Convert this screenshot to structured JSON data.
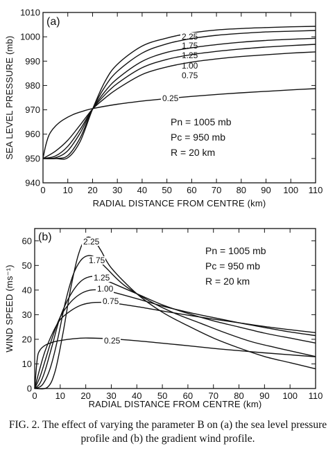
{
  "figure_label": "FIG. 2.",
  "caption": "The effect of varying the parameter B on (a) the sea level pressure profile and (b) the gradient wind profile.",
  "chart_data": [
    {
      "type": "line",
      "panel": "(a)",
      "xlabel": "RADIAL DISTANCE FROM CENTRE (km)",
      "ylabel": "SEA LEVEL PRESSURE (mb)",
      "xlim": [
        0,
        110
      ],
      "ylim": [
        940,
        1010
      ],
      "xticks": [
        0,
        10,
        20,
        30,
        40,
        50,
        60,
        70,
        80,
        90,
        100,
        110
      ],
      "yticks": [
        940,
        950,
        960,
        970,
        980,
        990,
        1000,
        1010
      ],
      "annotations": [
        "Pn = 1005 mb",
        "Pc = 950 mb",
        "R = 20 km"
      ],
      "series": [
        {
          "name": "2.25",
          "x": [
            0,
            5,
            10,
            15,
            20,
            25,
            30,
            40,
            50,
            60,
            70,
            80,
            90,
            100,
            110
          ],
          "y": [
            950,
            950,
            950.3,
            957,
            970.3,
            981.6,
            988.7,
            996.2,
            999.5,
            1001.6,
            1002.8,
            1003.4,
            1003.8,
            1004.1,
            1004.3
          ]
        },
        {
          "name": "1.75",
          "x": [
            0,
            5,
            10,
            15,
            20,
            25,
            30,
            40,
            50,
            60,
            70,
            80,
            90,
            100,
            110
          ],
          "y": [
            950,
            950,
            951.2,
            958.5,
            970.3,
            979.5,
            985.8,
            993.3,
            997.1,
            999.3,
            1000.6,
            1001.4,
            1002,
            1002.3,
            1002.6
          ]
        },
        {
          "name": "1.25",
          "x": [
            0,
            5,
            10,
            15,
            20,
            25,
            30,
            40,
            50,
            60,
            70,
            80,
            90,
            100,
            110
          ],
          "y": [
            950,
            950.3,
            953.2,
            960.5,
            970.3,
            977.5,
            982.8,
            989.9,
            993.6,
            995.5,
            996.8,
            997.8,
            998.5,
            999,
            999.4
          ]
        },
        {
          "name": "1.00",
          "x": [
            0,
            5,
            10,
            15,
            20,
            25,
            30,
            40,
            50,
            60,
            70,
            80,
            90,
            100,
            110
          ],
          "y": [
            950,
            951,
            955,
            962,
            970.3,
            976.2,
            980.8,
            987.3,
            990.7,
            992.7,
            994,
            995,
            995.8,
            996.4,
            996.9
          ]
        },
        {
          "name": "0.75",
          "x": [
            0,
            5,
            10,
            15,
            20,
            25,
            30,
            40,
            50,
            60,
            70,
            80,
            90,
            100,
            110
          ],
          "y": [
            950,
            953,
            957.5,
            963.8,
            970.3,
            974.8,
            978.6,
            984.5,
            987.6,
            989.6,
            990.9,
            991.9,
            992.6,
            993.3,
            993.8
          ]
        },
        {
          "name": "0.25",
          "x": [
            0,
            1,
            2,
            3,
            5,
            8,
            12,
            16,
            20,
            30,
            40,
            50,
            60,
            70,
            80,
            90,
            100,
            110
          ],
          "y": [
            950,
            955,
            958.5,
            960.7,
            963.3,
            965.8,
            968,
            969.4,
            970.5,
            972.3,
            973.6,
            974.6,
            975.5,
            976.3,
            977,
            977.6,
            978.2,
            978.7
          ]
        }
      ]
    },
    {
      "type": "line",
      "panel": "(b)",
      "xlabel": "RADIAL DISTANCE FROM CENTRE (km)",
      "ylabel": "WIND SPEED (ms⁻¹)",
      "xlim": [
        0,
        110
      ],
      "ylim": [
        0,
        65
      ],
      "xticks": [
        0,
        10,
        20,
        30,
        40,
        50,
        60,
        70,
        80,
        90,
        100,
        110
      ],
      "yticks": [
        0,
        10,
        20,
        30,
        40,
        50,
        60
      ],
      "annotations": [
        "Pn = 1005 mb",
        "Pc = 950 mb",
        "R = 20 km"
      ],
      "series": [
        {
          "name": "2.25",
          "x": [
            0,
            5,
            8,
            11,
            14,
            17,
            20,
            23,
            26,
            30,
            40,
            50,
            60,
            70,
            80,
            90,
            100,
            110
          ],
          "y": [
            0,
            0.5,
            7,
            22,
            40,
            54,
            61,
            60.5,
            56,
            49,
            38.5,
            31,
            25.5,
            20.5,
            16.5,
            13,
            10.5,
            8
          ]
        },
        {
          "name": "1.75",
          "x": [
            0,
            3,
            6,
            9,
            12,
            15,
            18,
            21,
            24,
            28,
            35,
            45,
            55,
            65,
            75,
            85,
            95,
            110
          ],
          "y": [
            0,
            1.5,
            8,
            20,
            35,
            46,
            52,
            54,
            53,
            49,
            42,
            35.5,
            30.5,
            26.5,
            22.5,
            19,
            16.5,
            13
          ]
        },
        {
          "name": "1.25",
          "x": [
            0,
            2,
            4,
            7,
            10,
            14,
            18,
            22,
            26,
            30,
            40,
            50,
            60,
            70,
            80,
            90,
            100,
            110
          ],
          "y": [
            0,
            2,
            7,
            18,
            29,
            38,
            43.5,
            45.5,
            44.8,
            43,
            38.5,
            34,
            30.5,
            27.5,
            25,
            22.5,
            20.5,
            18.5
          ]
        },
        {
          "name": "1.00",
          "x": [
            0,
            2,
            4,
            7,
            10,
            14,
            18,
            22,
            26,
            30,
            40,
            50,
            60,
            70,
            80,
            90,
            100,
            110
          ],
          "y": [
            0,
            4.5,
            11,
            21,
            29,
            35,
            38.5,
            40,
            40,
            39.3,
            36.5,
            33.5,
            31,
            28.8,
            26.7,
            24.8,
            23,
            21.5
          ]
        },
        {
          "name": "0.75",
          "x": [
            0,
            2,
            4,
            7,
            10,
            14,
            18,
            22,
            26,
            30,
            40,
            50,
            60,
            70,
            80,
            90,
            100,
            110
          ],
          "y": [
            0,
            8,
            15,
            22.5,
            28,
            31.5,
            33.8,
            34.8,
            35,
            34.8,
            33.3,
            31.5,
            29.8,
            28.2,
            26.7,
            25.2,
            23.9,
            22.7
          ]
        },
        {
          "name": "0.25",
          "x": [
            0,
            1,
            2,
            4,
            7,
            10,
            15,
            20,
            30,
            40,
            50,
            60,
            70,
            80,
            90,
            100,
            110
          ],
          "y": [
            0,
            12,
            15.5,
            17.5,
            18.8,
            19.5,
            20.2,
            20.5,
            20.2,
            19.4,
            18.4,
            17.4,
            16.3,
            15.4,
            14.5,
            13.7,
            12.9
          ]
        }
      ]
    }
  ]
}
